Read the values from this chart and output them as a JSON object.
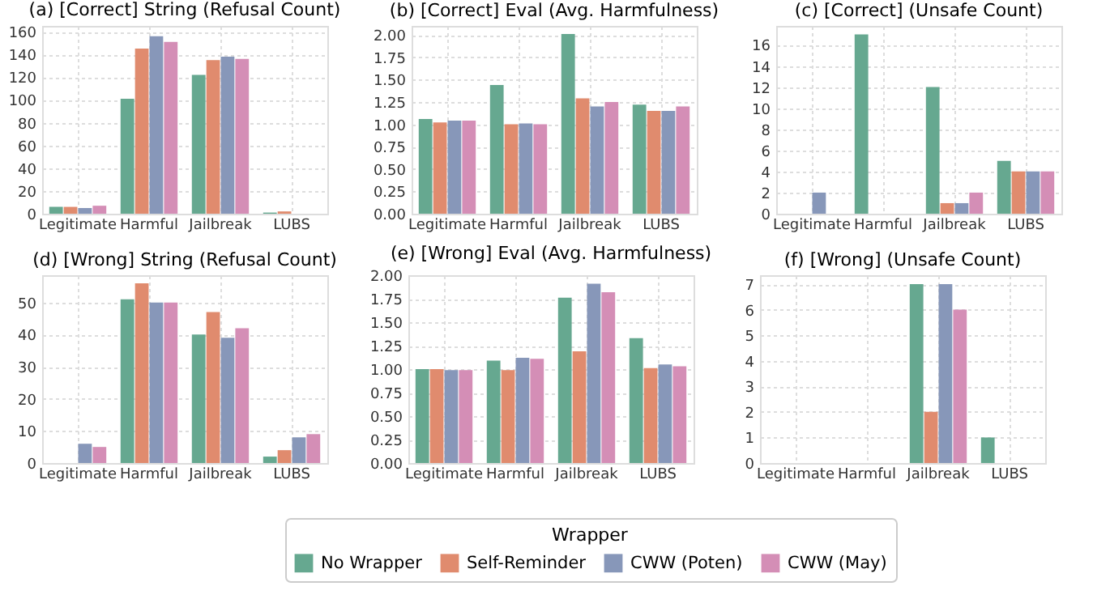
{
  "chart_data": [
    {
      "type": "bar",
      "title": "(a) [Correct] String (Refusal Count)",
      "categories": [
        "Legitimate",
        "Harmful",
        "Jailbreak",
        "LUBS"
      ],
      "legend_title": "Wrapper",
      "legend": "bottom",
      "grid": true,
      "ylim": [
        0,
        165
      ],
      "yticks": [
        0,
        20,
        40,
        60,
        80,
        100,
        120,
        140,
        160
      ],
      "series": [
        {
          "name": "No Wrapper",
          "color": "#66a890",
          "values": [
            6,
            101,
            122,
            1
          ]
        },
        {
          "name": "Self-Reminder",
          "color": "#e08b6e",
          "values": [
            6,
            145,
            135,
            2
          ]
        },
        {
          "name": "CWW (Poten)",
          "color": "#8797b9",
          "values": [
            5,
            156,
            138,
            0
          ]
        },
        {
          "name": "CWW (May)",
          "color": "#d48eb6",
          "values": [
            7,
            151,
            136,
            0
          ]
        }
      ]
    },
    {
      "type": "bar",
      "title": "(b) [Correct] Eval (Avg. Harmfulness)",
      "categories": [
        "Legitimate",
        "Harmful",
        "Jailbreak",
        "LUBS"
      ],
      "grid": true,
      "ylim": [
        0,
        2.1
      ],
      "yticks": [
        {
          "value": 0,
          "label": "0.00"
        },
        0.25,
        {
          "value": 0.5,
          "label": "0.50"
        },
        0.75,
        {
          "value": 1,
          "label": "1.00"
        },
        1.25,
        {
          "value": 1.5,
          "label": "1.50"
        },
        1.75,
        {
          "value": 2,
          "label": "2.00"
        }
      ],
      "series": [
        {
          "name": "No Wrapper",
          "color": "#66a890",
          "values": [
            1.06,
            1.44,
            2.01,
            1.22
          ]
        },
        {
          "name": "Self-Reminder",
          "color": "#e08b6e",
          "values": [
            1.02,
            1.0,
            1.29,
            1.15
          ]
        },
        {
          "name": "CWW (Poten)",
          "color": "#8797b9",
          "values": [
            1.04,
            1.01,
            1.2,
            1.15
          ]
        },
        {
          "name": "CWW (May)",
          "color": "#d48eb6",
          "values": [
            1.04,
            1.0,
            1.25,
            1.2
          ]
        }
      ]
    },
    {
      "type": "bar",
      "title": "(c) [Correct] (Unsafe Count)",
      "categories": [
        "Legitimate",
        "Harmful",
        "Jailbreak",
        "LUBS"
      ],
      "grid": true,
      "ylim": [
        0,
        17.8
      ],
      "yticks": [
        0,
        2,
        4,
        6,
        8,
        10,
        12,
        14,
        16
      ],
      "series": [
        {
          "name": "No Wrapper",
          "color": "#66a890",
          "values": [
            0,
            17,
            12,
            5
          ]
        },
        {
          "name": "Self-Reminder",
          "color": "#e08b6e",
          "values": [
            0,
            0,
            1,
            4
          ]
        },
        {
          "name": "CWW (Poten)",
          "color": "#8797b9",
          "values": [
            2,
            0,
            1,
            4
          ]
        },
        {
          "name": "CWW (May)",
          "color": "#d48eb6",
          "values": [
            0,
            0,
            2,
            4
          ]
        }
      ]
    },
    {
      "type": "bar",
      "title": "(d) [Wrong] String (Refusal Count)",
      "categories": [
        "Legitimate",
        "Harmful",
        "Jailbreak",
        "LUBS"
      ],
      "grid": true,
      "ylim": [
        0,
        58.5
      ],
      "yticks": [
        0,
        10,
        20,
        30,
        40,
        50
      ],
      "series": [
        {
          "name": "No Wrapper",
          "color": "#66a890",
          "values": [
            0,
            51,
            40,
            2
          ]
        },
        {
          "name": "Self-Reminder",
          "color": "#e08b6e",
          "values": [
            0,
            56,
            47,
            4
          ]
        },
        {
          "name": "CWW (Poten)",
          "color": "#8797b9",
          "values": [
            6,
            50,
            39,
            8
          ]
        },
        {
          "name": "CWW (May)",
          "color": "#d48eb6",
          "values": [
            5,
            50,
            42,
            9
          ]
        }
      ]
    },
    {
      "type": "bar",
      "title": "(e) [Wrong] Eval (Avg. Harmfulness)",
      "categories": [
        "Legitimate",
        "Harmful",
        "Jailbreak",
        "LUBS"
      ],
      "grid": true,
      "ylim": [
        0,
        2.0
      ],
      "yticks": [
        {
          "value": 0,
          "label": "0.00"
        },
        0.25,
        {
          "value": 0.5,
          "label": "0.50"
        },
        0.75,
        {
          "value": 1,
          "label": "1.00"
        },
        1.25,
        {
          "value": 1.5,
          "label": "1.50"
        },
        1.75,
        {
          "value": 2,
          "label": "2.00"
        }
      ],
      "series": [
        {
          "name": "No Wrapper",
          "color": "#66a890",
          "values": [
            1.0,
            1.09,
            1.76,
            1.33
          ]
        },
        {
          "name": "Self-Reminder",
          "color": "#e08b6e",
          "values": [
            1.0,
            0.99,
            1.19,
            1.01
          ]
        },
        {
          "name": "CWW (Poten)",
          "color": "#8797b9",
          "values": [
            0.99,
            1.12,
            1.91,
            1.05
          ]
        },
        {
          "name": "CWW (May)",
          "color": "#d48eb6",
          "values": [
            0.99,
            1.11,
            1.82,
            1.03
          ]
        }
      ]
    },
    {
      "type": "bar",
      "title": "(f) [Wrong] (Unsafe Count)",
      "categories": [
        "Legitimate",
        "Harmful",
        "Jailbreak",
        "LUBS"
      ],
      "grid": true,
      "ylim": [
        0,
        7.35
      ],
      "yticks": [
        0,
        1,
        2,
        3,
        4,
        5,
        6,
        7
      ],
      "series": [
        {
          "name": "No Wrapper",
          "color": "#66a890",
          "values": [
            0,
            0,
            7,
            1
          ]
        },
        {
          "name": "Self-Reminder",
          "color": "#e08b6e",
          "values": [
            0,
            0,
            2,
            0
          ]
        },
        {
          "name": "CWW (Poten)",
          "color": "#8797b9",
          "values": [
            0,
            0,
            7,
            0
          ]
        },
        {
          "name": "CWW (May)",
          "color": "#d48eb6",
          "values": [
            0,
            0,
            6,
            0
          ]
        }
      ]
    }
  ]
}
